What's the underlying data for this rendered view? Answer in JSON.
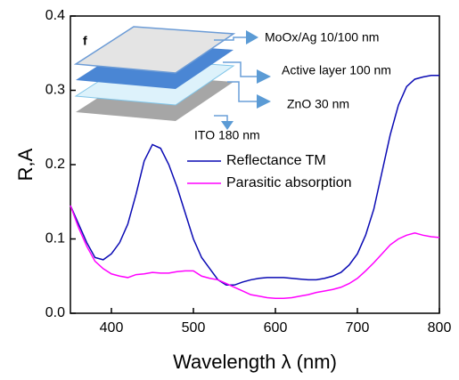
{
  "chart_data": {
    "type": "line",
    "x_label": "Wavelength λ (nm)",
    "y_label": "R,A",
    "x": [
      350,
      360,
      370,
      380,
      390,
      400,
      410,
      420,
      430,
      440,
      450,
      460,
      470,
      480,
      490,
      500,
      510,
      520,
      530,
      540,
      550,
      560,
      570,
      580,
      590,
      600,
      610,
      620,
      630,
      640,
      650,
      660,
      670,
      680,
      690,
      700,
      710,
      720,
      730,
      740,
      750,
      760,
      770,
      780,
      790,
      800
    ],
    "series": [
      {
        "name": "Reflectance TM",
        "color": "#0a0ab4",
        "values": [
          0.145,
          0.12,
          0.095,
          0.075,
          0.072,
          0.08,
          0.095,
          0.12,
          0.16,
          0.205,
          0.227,
          0.222,
          0.2,
          0.17,
          0.135,
          0.1,
          0.075,
          0.06,
          0.045,
          0.038,
          0.038,
          0.042,
          0.045,
          0.047,
          0.048,
          0.048,
          0.048,
          0.047,
          0.046,
          0.045,
          0.045,
          0.047,
          0.05,
          0.055,
          0.065,
          0.08,
          0.105,
          0.14,
          0.19,
          0.24,
          0.28,
          0.305,
          0.315,
          0.318,
          0.32,
          0.32
        ]
      },
      {
        "name": "Parasitic absorption",
        "color": "#ff00ff",
        "values": [
          0.145,
          0.115,
          0.09,
          0.07,
          0.06,
          0.053,
          0.05,
          0.048,
          0.052,
          0.053,
          0.055,
          0.054,
          0.054,
          0.056,
          0.057,
          0.057,
          0.05,
          0.047,
          0.045,
          0.04,
          0.035,
          0.03,
          0.025,
          0.023,
          0.021,
          0.02,
          0.02,
          0.021,
          0.023,
          0.025,
          0.028,
          0.03,
          0.032,
          0.035,
          0.04,
          0.047,
          0.057,
          0.068,
          0.08,
          0.092,
          0.1,
          0.105,
          0.108,
          0.105,
          0.103,
          0.102
        ]
      }
    ],
    "xlim": [
      350,
      800
    ],
    "xticks": [
      400,
      500,
      600,
      700,
      800
    ],
    "ylim": [
      0,
      0.4
    ],
    "yticks": [
      {
        "value": 0,
        "label": "0.0"
      },
      0.1,
      0.2,
      0.3,
      0.4
    ],
    "annotations": [
      "f",
      "MoOx/Ag 10/100 nm",
      "Active layer 100 nm",
      "ZnO 30 nm",
      "ITO 180 nm"
    ]
  }
}
